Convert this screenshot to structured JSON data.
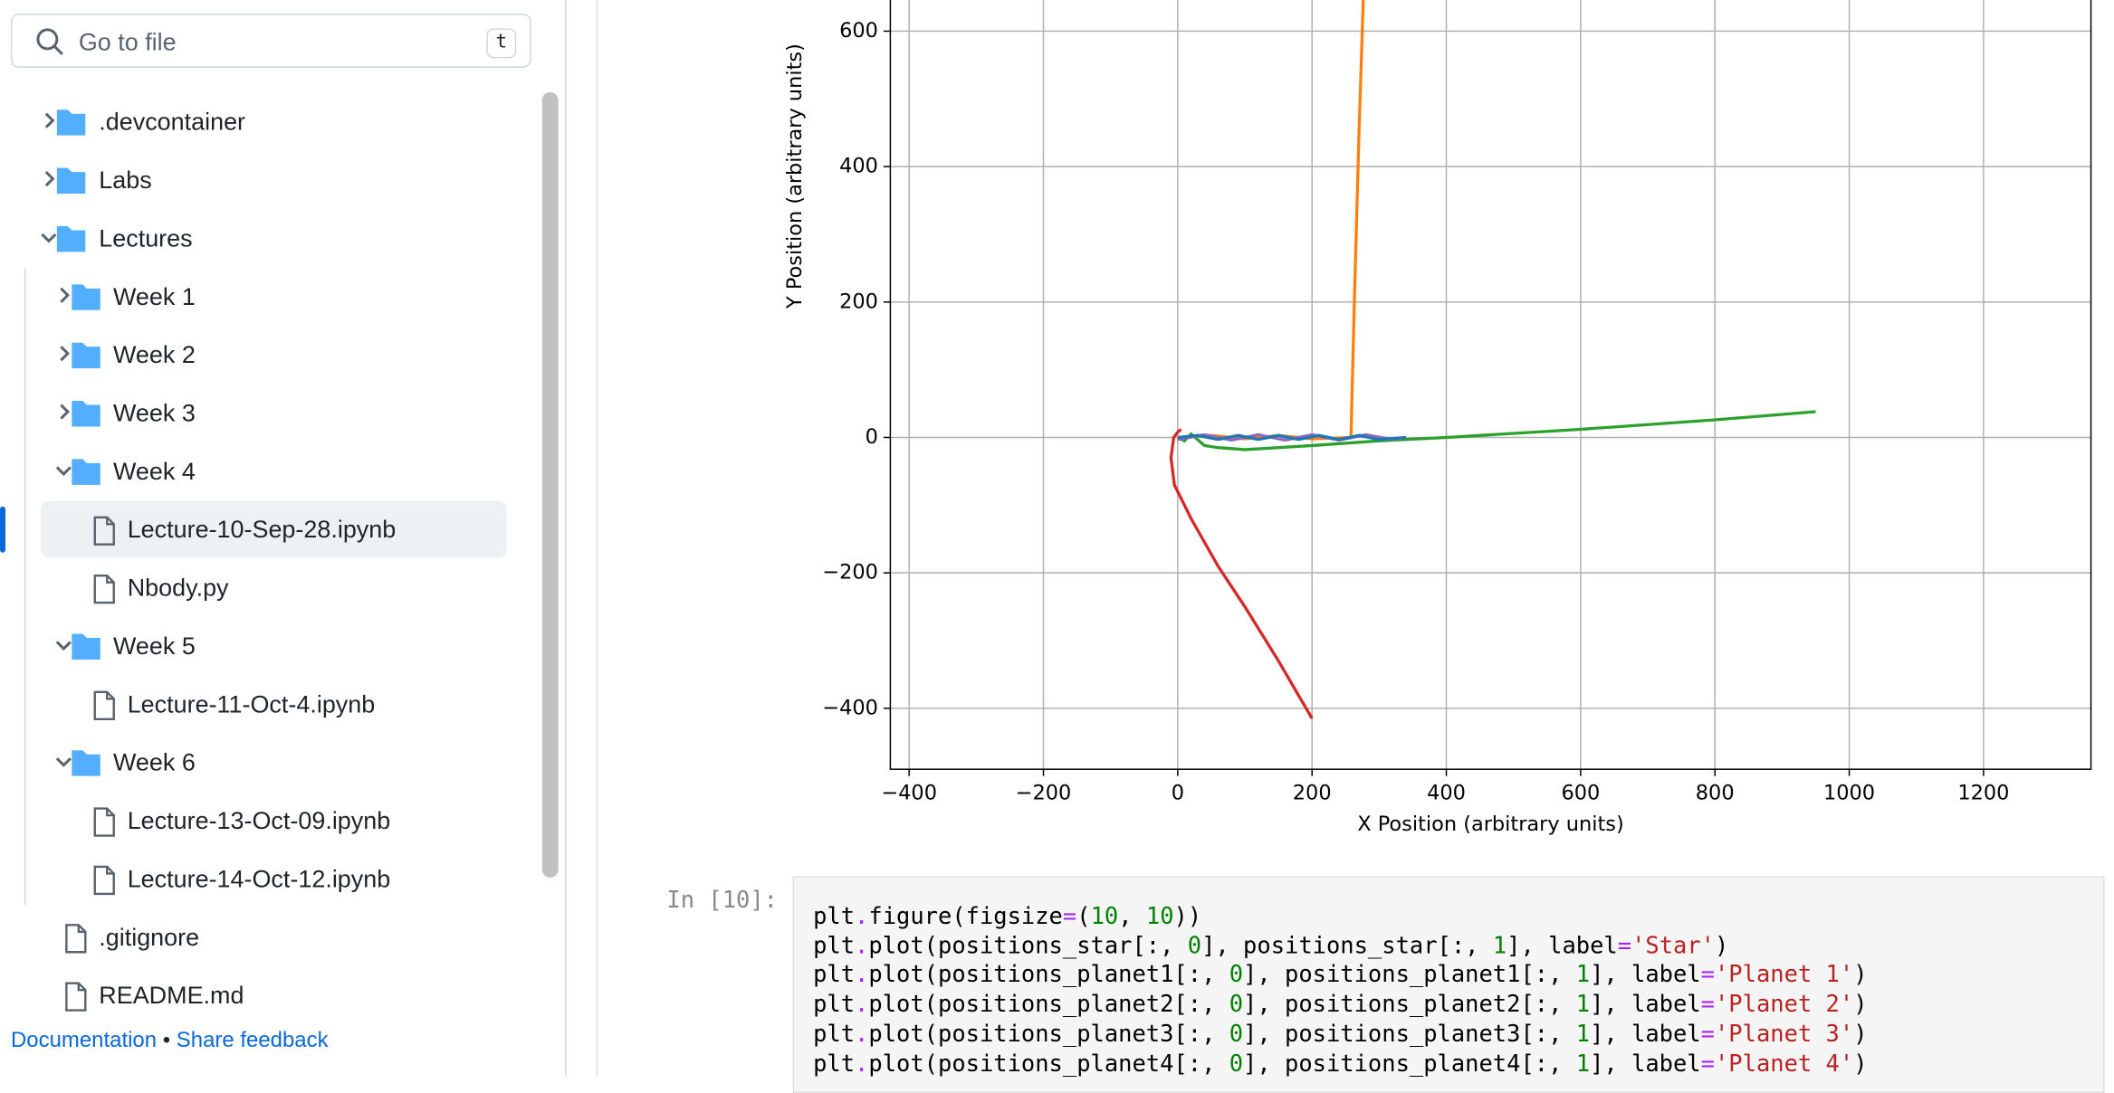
{
  "search": {
    "placeholder": "Go to file",
    "shortcut": "t"
  },
  "tree": [
    {
      "label": ".devcontainer",
      "kind": "folder",
      "depth": 0,
      "open": false
    },
    {
      "label": "Labs",
      "kind": "folder",
      "depth": 0,
      "open": false
    },
    {
      "label": "Lectures",
      "kind": "folder",
      "depth": 0,
      "open": true
    },
    {
      "label": "Week 1",
      "kind": "folder",
      "depth": 1,
      "open": false
    },
    {
      "label": "Week 2",
      "kind": "folder",
      "depth": 1,
      "open": false
    },
    {
      "label": "Week 3",
      "kind": "folder",
      "depth": 1,
      "open": false
    },
    {
      "label": "Week 4",
      "kind": "folder",
      "depth": 1,
      "open": true
    },
    {
      "label": "Lecture-10-Sep-28.ipynb",
      "kind": "file",
      "depth": 2,
      "selected": true
    },
    {
      "label": "Nbody.py",
      "kind": "file",
      "depth": 2
    },
    {
      "label": "Week 5",
      "kind": "folder",
      "depth": 1,
      "open": true
    },
    {
      "label": "Lecture-11-Oct-4.ipynb",
      "kind": "file",
      "depth": 2
    },
    {
      "label": "Week 6",
      "kind": "folder",
      "depth": 1,
      "open": true
    },
    {
      "label": "Lecture-13-Oct-09.ipynb",
      "kind": "file",
      "depth": 2
    },
    {
      "label": "Lecture-14-Oct-12.ipynb",
      "kind": "file",
      "depth": 2
    },
    {
      "label": ".gitignore",
      "kind": "file",
      "depth": 0
    },
    {
      "label": "README.md",
      "kind": "file",
      "depth": 0
    }
  ],
  "footer": {
    "links": [
      "Documentation",
      "Share feedback"
    ],
    "separator": "•"
  },
  "notebook": {
    "prompt": "In [10]:",
    "code": [
      "plt.figure(figsize=(10, 10))",
      "plt.plot(positions_star[:, 0], positions_star[:, 1], label='Star')",
      "plt.plot(positions_planet1[:, 0], positions_planet1[:, 1], label='Planet 1')",
      "plt.plot(positions_planet2[:, 0], positions_planet2[:, 1], label='Planet 2')",
      "plt.plot(positions_planet3[:, 0], positions_planet3[:, 1], label='Planet 3')",
      "plt.plot(positions_planet4[:, 0], positions_planet4[:, 1], label='Planet 4')"
    ]
  },
  "chart_data": {
    "type": "line",
    "x_label": "X Position (arbitrary units)",
    "y_label": "Y Position (arbitrary units)",
    "xlim": [
      -428,
      1360
    ],
    "ylim": [
      -490,
      646
    ],
    "xticks": [
      {
        "value": -400,
        "label": "−400"
      },
      {
        "value": -200,
        "label": "−200"
      },
      0,
      200,
      400,
      600,
      800,
      1000,
      1200
    ],
    "yticks": [
      {
        "value": -400,
        "label": "−400"
      },
      {
        "value": -200,
        "label": "−200"
      },
      0,
      200,
      400,
      600
    ],
    "grid": true,
    "series": [
      {
        "color": "#ff7f0e",
        "x": [
          0,
          50,
          100,
          150,
          200,
          258,
          263,
          270,
          278
        ],
        "values": [
          0,
          3,
          -2,
          3,
          -2,
          0,
          200,
          450,
          700
        ]
      },
      {
        "color": "#2ca02c",
        "x": [
          0,
          10,
          20,
          40,
          60,
          100,
          200,
          300,
          400,
          600,
          800,
          950
        ],
        "values": [
          0,
          -5,
          5,
          -12,
          -15,
          -18,
          -12,
          -5,
          0,
          12,
          26,
          38
        ]
      },
      {
        "color": "#d62728",
        "x": [
          5,
          0,
          -6,
          -10,
          -5,
          20,
          60,
          100,
          150,
          200
        ],
        "values": [
          12,
          8,
          0,
          -30,
          -70,
          -120,
          -190,
          -250,
          -330,
          -415
        ]
      },
      {
        "color": "#9467bd",
        "x": [
          0,
          40,
          80,
          120,
          160,
          200,
          240,
          280,
          320,
          340
        ],
        "values": [
          -3,
          4,
          -4,
          4,
          -4,
          4,
          -4,
          4,
          -3,
          0
        ]
      },
      {
        "color": "#1f77b4",
        "x": [
          0,
          30,
          60,
          90,
          120,
          150,
          180,
          210,
          240,
          270,
          300,
          340
        ],
        "values": [
          0,
          3,
          -3,
          3,
          -3,
          3,
          -3,
          3,
          -3,
          3,
          -3,
          0
        ]
      }
    ]
  }
}
